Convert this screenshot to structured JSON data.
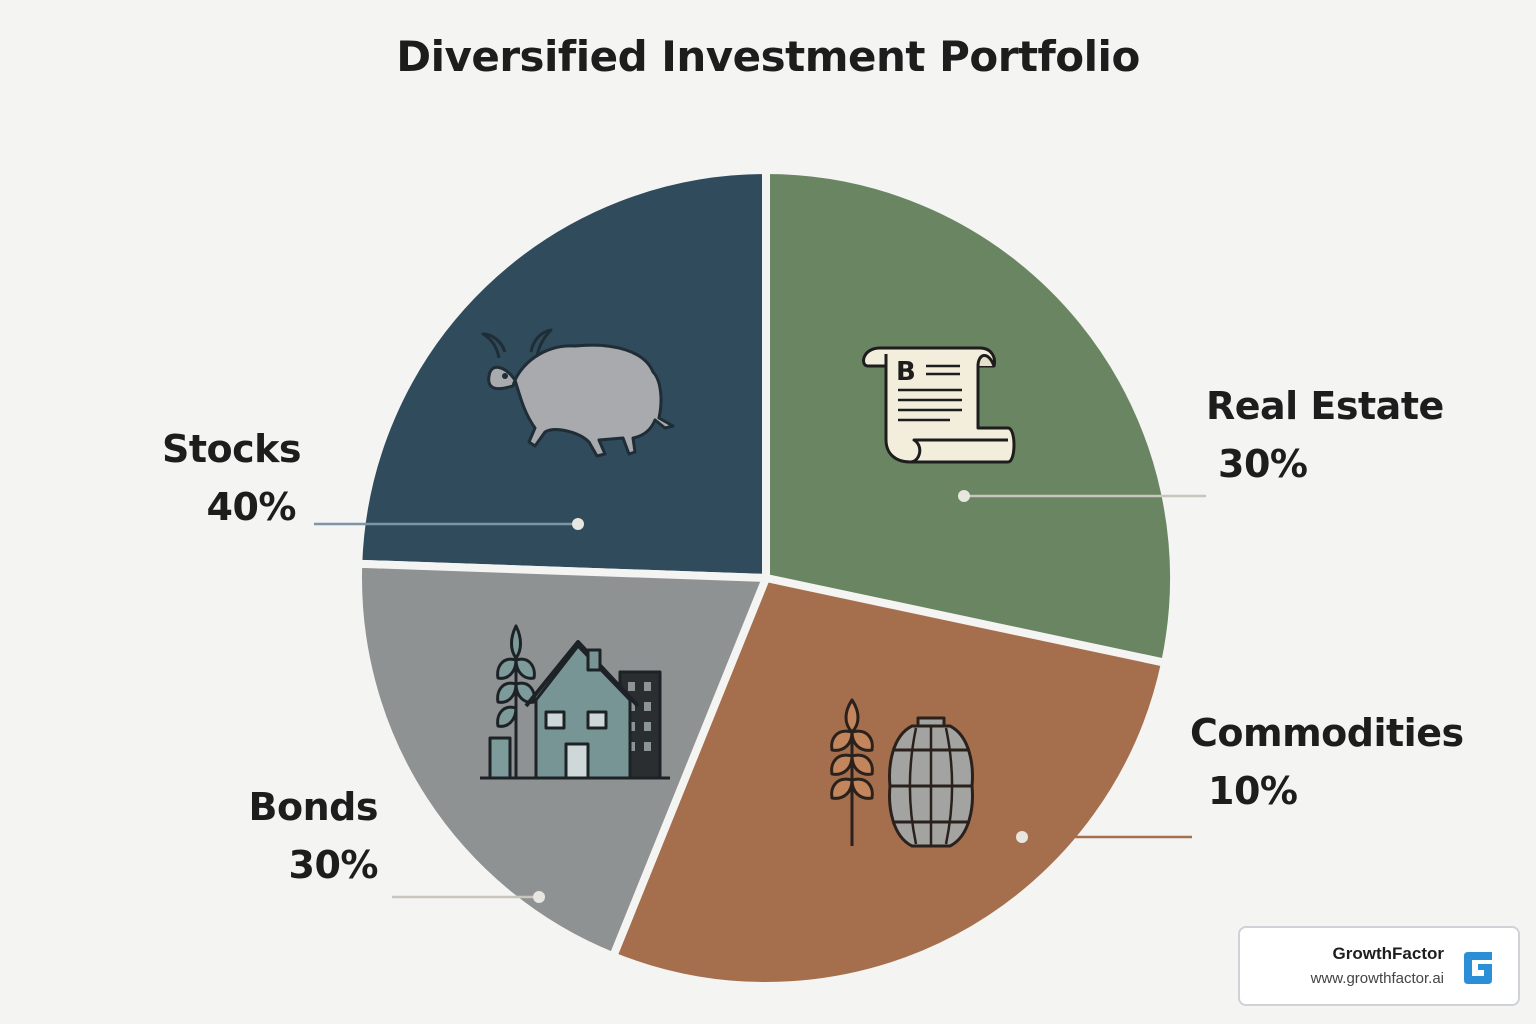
{
  "chart_data": {
    "type": "pie",
    "title": "Diversified Investment Portfolio",
    "slices": [
      {
        "key": "stocks",
        "label": "Stocks",
        "value": 40,
        "value_label": "40%",
        "color": "#304b5c",
        "icon": "bull-icon"
      },
      {
        "key": "real_estate",
        "label": "Real Estate",
        "value": 30,
        "value_label": "30%",
        "color": "#6a8562",
        "icon": "bond-scroll-icon"
      },
      {
        "key": "commodities",
        "label": "Commodities",
        "value": 10,
        "value_label": "10%",
        "color": "#a56f4e",
        "icon": "wheat-barrel-icon"
      },
      {
        "key": "bonds",
        "label": "Bonds",
        "value": 30,
        "value_label": "30%",
        "color": "#8f9293",
        "icon": "house-buildings-icon"
      }
    ],
    "legend": "none"
  },
  "brand": {
    "name": "GrowthFactor",
    "url": "www.growthfactor.ai",
    "logo_icon": "growthfactor-logo-icon",
    "logo_color": "#2a8fd6"
  }
}
